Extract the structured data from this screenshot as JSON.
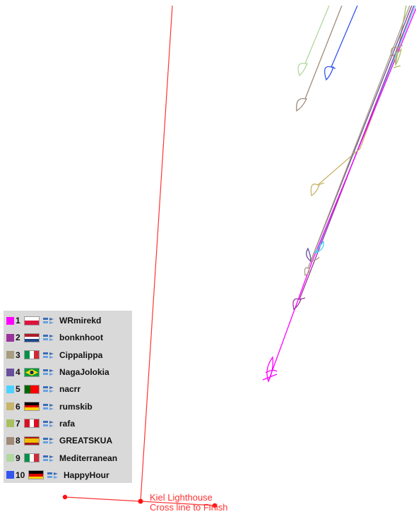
{
  "map": {
    "finish_label_1": "Kiel Lighthouse",
    "finish_label_2": "Cross line to Finish",
    "line_color": "#ff3333"
  },
  "legend": {
    "entries": [
      {
        "rank": "1",
        "player": "WRmirekd",
        "color": "#ff00ff",
        "flag": "poland",
        "boat_icon": "boat-icon"
      },
      {
        "rank": "2",
        "player": "bonknhoot",
        "color": "#993399",
        "flag": "netherlands",
        "boat_icon": "boat-icon"
      },
      {
        "rank": "3",
        "player": "Cippalippa",
        "color": "#a89d80",
        "flag": "italy",
        "boat_icon": "boat-icon"
      },
      {
        "rank": "4",
        "player": "NagaJolokia",
        "color": "#6a4f9c",
        "flag": "brazil",
        "boat_icon": "boat-icon"
      },
      {
        "rank": "5",
        "player": "nacrr",
        "color": "#4dd2ff",
        "flag": "portugal",
        "boat_icon": "boat-icon"
      },
      {
        "rank": "6",
        "player": "rumskib",
        "color": "#c8b46a",
        "flag": "germany",
        "boat_icon": "boat-icon"
      },
      {
        "rank": "7",
        "player": "rafa",
        "color": "#a8c060",
        "flag": "peru",
        "boat_icon": "boat-icon"
      },
      {
        "rank": "8",
        "player": "GREATSKUA",
        "color": "#a08a78",
        "flag": "spain",
        "boat_icon": "boat-icon"
      },
      {
        "rank": "9",
        "player": "Mediterranean",
        "color": "#b0d8a0",
        "flag": "italy",
        "boat_icon": "boat-icon"
      },
      {
        "rank": "10",
        "player": "HappyHour",
        "color": "#3355ee",
        "flag": "germany",
        "boat_icon": "boat-icon"
      }
    ]
  }
}
